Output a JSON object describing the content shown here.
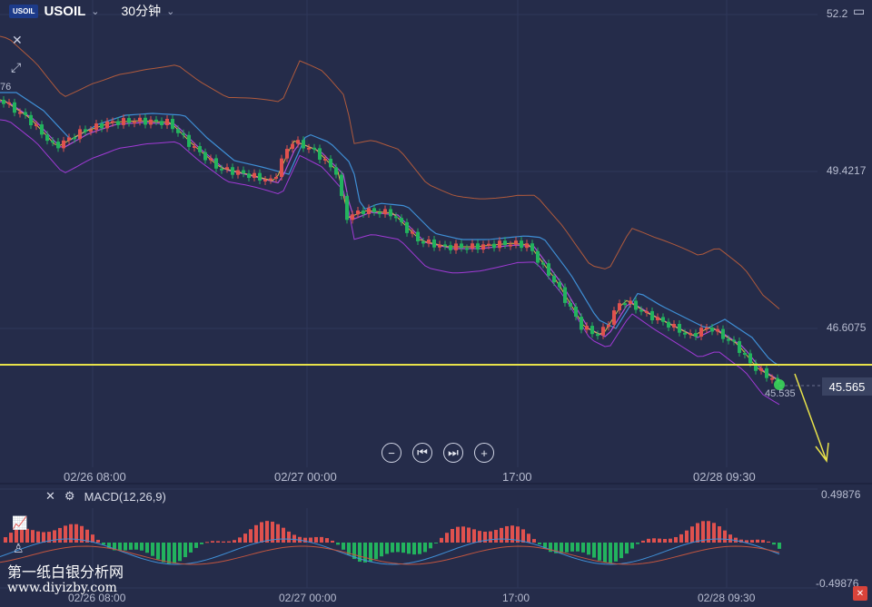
{
  "header": {
    "logo_text": "USOIL",
    "symbol": "USOIL",
    "interval": "30分钟"
  },
  "price_axis": {
    "ticks": [
      "52.2",
      "49.4217",
      "46.6075"
    ],
    "current_price": "45.565",
    "last_label": "45.535"
  },
  "time_axis": {
    "ticks": [
      "02/26 08:00",
      "02/27 00:00",
      "17:00",
      "02/28 09:30"
    ]
  },
  "macd": {
    "title": "MACD(12,26,9)",
    "ticks": [
      "0.49876",
      "-0.49876"
    ]
  },
  "watermark": {
    "line1": "第一纸白银分析网",
    "line2": "www.diyizby.com"
  },
  "colors": {
    "background": "#252c4a",
    "up": "#e0514e",
    "down": "#22b35e",
    "support_line": "#e8e24a",
    "arrow": "#e8e24a"
  },
  "nav_buttons": [
    "zoom-out",
    "scroll-start",
    "scroll-end",
    "zoom-in"
  ],
  "icons": [
    "close-icon",
    "expand-icon",
    "settings-icon",
    "indicator-icon",
    "draw-icon",
    "calendar-icon"
  ]
}
